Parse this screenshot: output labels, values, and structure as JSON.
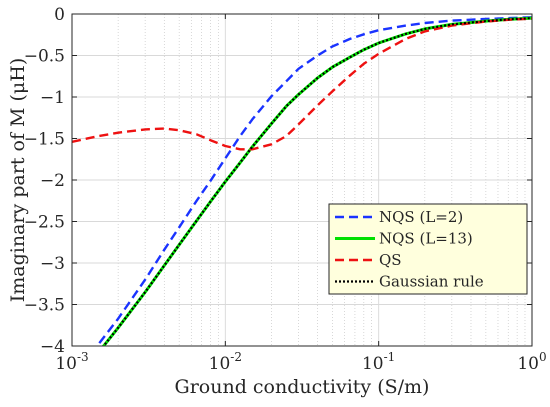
{
  "chart_data": {
    "type": "line",
    "xscale": "log",
    "xlabel": "Ground conductivity (S/m)",
    "ylabel": "Imaginary part of M (μH)",
    "xlim": [
      0.001,
      1
    ],
    "ylim": [
      -4,
      0
    ],
    "grid": true,
    "legend_position": "bottom-right",
    "x_ticks": [
      0.001,
      0.01,
      0.1,
      1
    ],
    "x_tick_labels": [
      "10^-3",
      "10^-2",
      "10^-1",
      "10^0"
    ],
    "y_ticks": [
      0,
      -0.5,
      -1,
      -1.5,
      -2,
      -2.5,
      -3,
      -3.5,
      -4
    ],
    "y_tick_labels": [
      "0",
      "−0.5",
      "−1",
      "−1.5",
      "−2",
      "−2.5",
      "−3",
      "−3.5",
      "−4"
    ],
    "series": [
      {
        "name": "NQS (L=2)",
        "color": "#1a33ff",
        "dash": "dashed",
        "x": [
          0.001,
          0.0015,
          0.002,
          0.003,
          0.004,
          0.005,
          0.0065,
          0.008,
          0.01,
          0.0125,
          0.015,
          0.02,
          0.025,
          0.03,
          0.04,
          0.05,
          0.065,
          0.08,
          0.1,
          0.15,
          0.2,
          0.3,
          0.5,
          0.7,
          1.0
        ],
        "y": [
          -4.35,
          -3.97,
          -3.67,
          -3.2,
          -2.84,
          -2.57,
          -2.25,
          -2.01,
          -1.74,
          -1.47,
          -1.27,
          -0.99,
          -0.81,
          -0.66,
          -0.5,
          -0.39,
          -0.3,
          -0.245,
          -0.195,
          -0.14,
          -0.108,
          -0.08,
          -0.06,
          -0.05,
          -0.04
        ]
      },
      {
        "name": "NQS (L=13)",
        "color": "#00e000",
        "dash": "solid",
        "x": [
          0.001,
          0.0015,
          0.002,
          0.003,
          0.004,
          0.005,
          0.0065,
          0.008,
          0.01,
          0.0125,
          0.015,
          0.02,
          0.025,
          0.03,
          0.04,
          0.05,
          0.065,
          0.08,
          0.1,
          0.15,
          0.2,
          0.3,
          0.5,
          0.7,
          1.0
        ],
        "y": [
          -4.4,
          -4.07,
          -3.78,
          -3.35,
          -3.03,
          -2.78,
          -2.49,
          -2.26,
          -2.02,
          -1.79,
          -1.6,
          -1.32,
          -1.11,
          -0.97,
          -0.77,
          -0.64,
          -0.52,
          -0.43,
          -0.35,
          -0.24,
          -0.18,
          -0.125,
          -0.085,
          -0.065,
          -0.05
        ]
      },
      {
        "name": "QS",
        "color": "#ee1111",
        "dash": "dashed",
        "x": [
          0.001,
          0.0015,
          0.002,
          0.003,
          0.004,
          0.005,
          0.0065,
          0.008,
          0.01,
          0.0125,
          0.015,
          0.02,
          0.025,
          0.03,
          0.04,
          0.05,
          0.065,
          0.08,
          0.1,
          0.15,
          0.2,
          0.3,
          0.5,
          0.7,
          1.0
        ],
        "y": [
          -1.54,
          -1.47,
          -1.43,
          -1.39,
          -1.38,
          -1.4,
          -1.45,
          -1.52,
          -1.59,
          -1.63,
          -1.63,
          -1.57,
          -1.47,
          -1.33,
          -1.1,
          -0.93,
          -0.74,
          -0.6,
          -0.48,
          -0.3,
          -0.21,
          -0.14,
          -0.09,
          -0.07,
          -0.055
        ]
      },
      {
        "name": "Gaussian rule",
        "color": "#000000",
        "dash": "dotted",
        "x": [
          0.001,
          0.0015,
          0.002,
          0.003,
          0.004,
          0.005,
          0.0065,
          0.008,
          0.01,
          0.0125,
          0.015,
          0.02,
          0.025,
          0.03,
          0.04,
          0.05,
          0.065,
          0.08,
          0.1,
          0.15,
          0.2,
          0.3,
          0.5,
          0.7,
          1.0
        ],
        "y": [
          -4.4,
          -4.07,
          -3.78,
          -3.35,
          -3.03,
          -2.78,
          -2.49,
          -2.26,
          -2.02,
          -1.79,
          -1.6,
          -1.32,
          -1.11,
          -0.97,
          -0.77,
          -0.64,
          -0.52,
          -0.43,
          -0.35,
          -0.24,
          -0.18,
          -0.125,
          -0.085,
          -0.065,
          -0.05
        ]
      }
    ]
  }
}
